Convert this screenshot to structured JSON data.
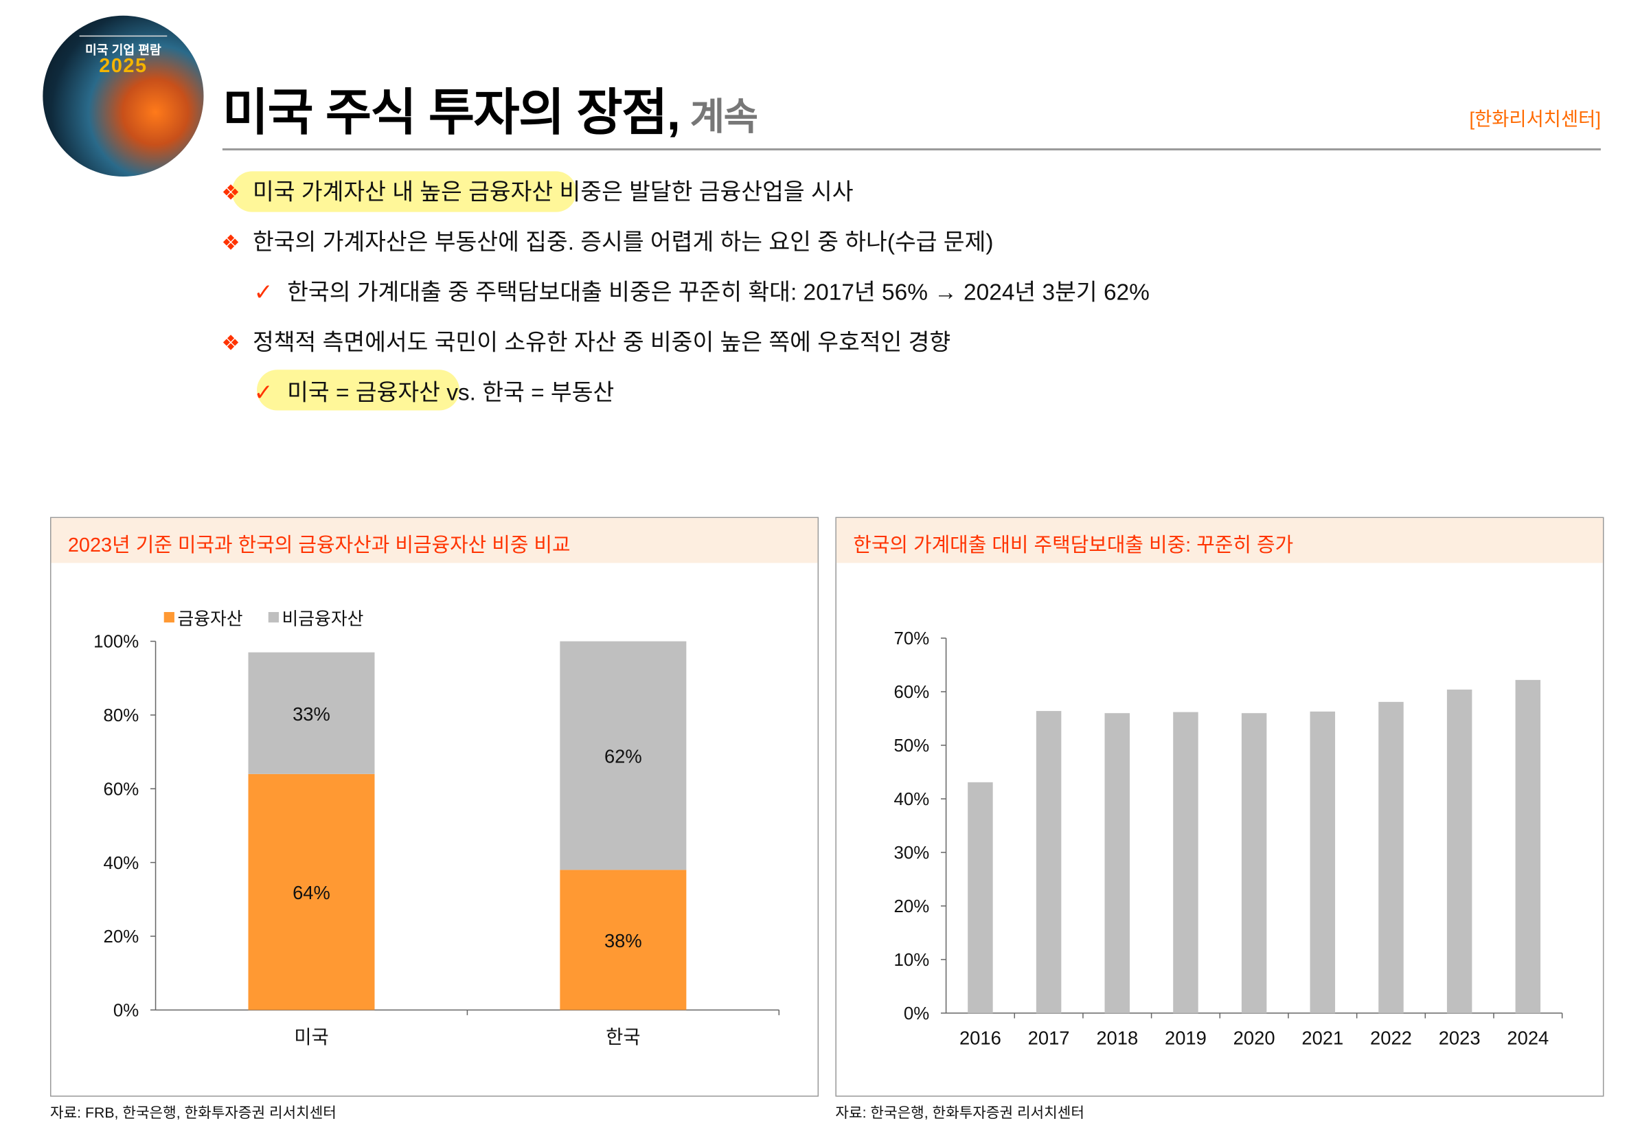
{
  "logo": {
    "line1": "미국 기업 편람",
    "line2": "2025"
  },
  "header": {
    "title": "미국 주식 투자의 장점,",
    "subtitle": "계속",
    "org": "[한화리서치센터]"
  },
  "bullets": [
    {
      "icon": "diamond-bullet-icon",
      "highlight": "미국 가계자산 내 높은 금융자산",
      "text": " 비중은 발달한 금융산업을 시사"
    },
    {
      "icon": "diamond-bullet-icon",
      "text": "한국의 가계자산은 부동산에 집중. 증시를 어렵게 하는 요인 중 하나(수급 문제)"
    },
    {
      "icon": "check-icon",
      "text": "한국의 가계대출 중 주택담보대출 비중은 꾸준히 확대: 2017년 56% → 2024년 3분기 62%"
    },
    {
      "icon": "diamond-bullet-icon",
      "text": "정책적 측면에서도 국민이 소유한 자산 중 비중이 높은 쪽에 우호적인 경향"
    },
    {
      "icon": "check-icon",
      "highlight": "미국 = 금융자산",
      "text": " vs. 한국 = 부동산"
    }
  ],
  "colors": {
    "accent": "#ff3300",
    "orange_bar": "#ff9933",
    "gray_bar": "#bfbfbf",
    "highlight": "#fff799",
    "panel_header": "#fdeee0"
  },
  "chart_data": [
    {
      "type": "bar",
      "stacked": true,
      "title": "2023년 기준 미국과 한국의 금융자산과 비금융자산 비중 비교",
      "categories": [
        "미국",
        "한국"
      ],
      "series": [
        {
          "name": "금융자산",
          "values": [
            64,
            38
          ],
          "labels": [
            "64%",
            "38%"
          ]
        },
        {
          "name": "비금융자산",
          "values": [
            33,
            62
          ],
          "labels": [
            "33%",
            "62%"
          ]
        }
      ],
      "ylim": [
        0,
        100
      ],
      "yticks": [
        "0%",
        "20%",
        "40%",
        "60%",
        "80%",
        "100%"
      ],
      "legend": "top-left",
      "grid": false,
      "source": "자료: FRB, 한국은행, 한화투자증권 리서치센터"
    },
    {
      "type": "bar",
      "title": "한국의 가계대출 대비 주택담보대출 비중: 꾸준히 증가",
      "categories": [
        "2016",
        "2017",
        "2018",
        "2019",
        "2020",
        "2021",
        "2022",
        "2023",
        "2024"
      ],
      "values": [
        43.1,
        56.4,
        56.0,
        56.2,
        56.0,
        56.3,
        58.1,
        60.4,
        62.2
      ],
      "ylim": [
        0,
        70
      ],
      "yticks": [
        "0%",
        "10%",
        "20%",
        "30%",
        "40%",
        "50%",
        "60%",
        "70%"
      ],
      "grid": false,
      "source": "자료: 한국은행, 한화투자증권 리서치센터"
    }
  ]
}
